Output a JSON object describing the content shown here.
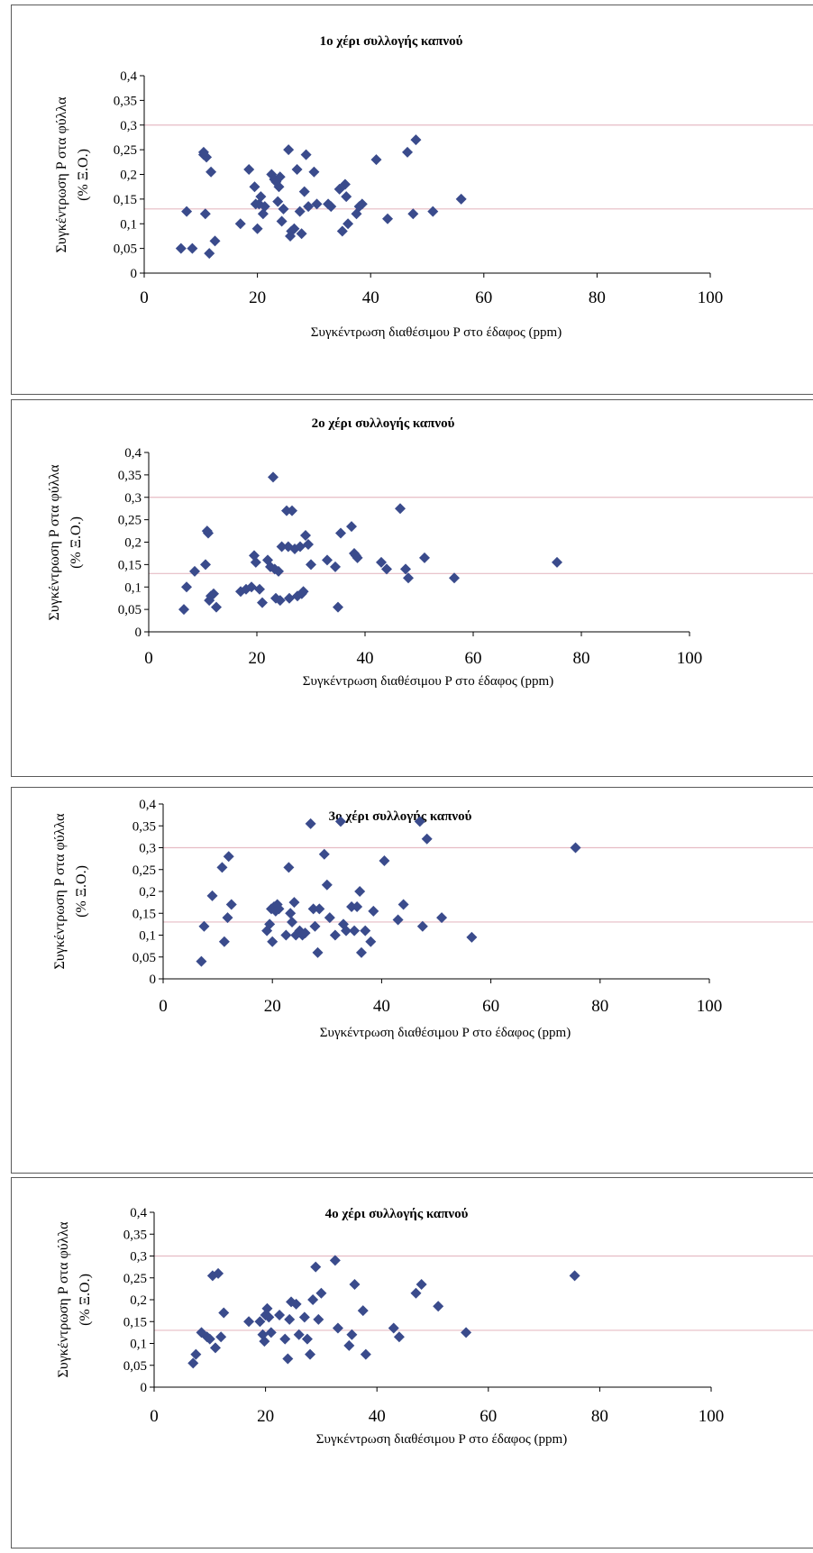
{
  "chart_data": [
    {
      "type": "scatter",
      "title": "1ο χέρι συλλογής καπνού",
      "xlabel": "Συγκέντρωση διαθέσιμου P στο έδαφος (ppm)",
      "ylabel": [
        "Συγκέντρωση P στα φύλλα",
        "(% Ξ.Ο.)"
      ],
      "xlim": [
        0,
        100
      ],
      "ylim": [
        0,
        0.4
      ],
      "xticks": [
        "0",
        "20",
        "40",
        "60",
        "80",
        "100"
      ],
      "yticks": [
        "0",
        "0,05",
        "0,1",
        "0,15",
        "0,2",
        "0,25",
        "0,3",
        "0,35",
        "0,4"
      ],
      "reference_lines": [
        0.3,
        0.13
      ],
      "marker_color": "#3a4b8c",
      "reference_line_color": "#e6bcc4",
      "points": [
        [
          6.5,
          0.05
        ],
        [
          7.5,
          0.125
        ],
        [
          8.5,
          0.05
        ],
        [
          10.5,
          0.24
        ],
        [
          10.5,
          0.245
        ],
        [
          10.8,
          0.12
        ],
        [
          11,
          0.235
        ],
        [
          11.5,
          0.04
        ],
        [
          11.8,
          0.205
        ],
        [
          12.5,
          0.065
        ],
        [
          17,
          0.1
        ],
        [
          18.5,
          0.21
        ],
        [
          19.5,
          0.175
        ],
        [
          19.7,
          0.14
        ],
        [
          20,
          0.09
        ],
        [
          20.3,
          0.14
        ],
        [
          20.6,
          0.155
        ],
        [
          21,
          0.12
        ],
        [
          21.3,
          0.135
        ],
        [
          22.5,
          0.2
        ],
        [
          23,
          0.19
        ],
        [
          23.3,
          0.185
        ],
        [
          23.6,
          0.145
        ],
        [
          23.8,
          0.175
        ],
        [
          24,
          0.195
        ],
        [
          24.3,
          0.105
        ],
        [
          24.6,
          0.13
        ],
        [
          25.5,
          0.25
        ],
        [
          25.8,
          0.075
        ],
        [
          26,
          0.085
        ],
        [
          26.5,
          0.09
        ],
        [
          27,
          0.21
        ],
        [
          27.5,
          0.125
        ],
        [
          27.8,
          0.08
        ],
        [
          28.3,
          0.165
        ],
        [
          28.6,
          0.24
        ],
        [
          29,
          0.135
        ],
        [
          30,
          0.205
        ],
        [
          30.5,
          0.14
        ],
        [
          32.5,
          0.14
        ],
        [
          33,
          0.135
        ],
        [
          34.5,
          0.17
        ],
        [
          35,
          0.085
        ],
        [
          35.5,
          0.18
        ],
        [
          35.7,
          0.155
        ],
        [
          36,
          0.1
        ],
        [
          37.5,
          0.12
        ],
        [
          38,
          0.135
        ],
        [
          38.5,
          0.14
        ],
        [
          41,
          0.23
        ],
        [
          43,
          0.11
        ],
        [
          46.5,
          0.245
        ],
        [
          47.5,
          0.12
        ],
        [
          48,
          0.27
        ],
        [
          51,
          0.125
        ],
        [
          56,
          0.15
        ]
      ]
    },
    {
      "type": "scatter",
      "title": "2ο χέρι συλλογής καπνού",
      "xlabel": "Συγκέντρωση διαθέσιμου P στο έδαφος (ppm)",
      "ylabel": [
        "Συγκέντρωση P στα φύλλα",
        "(% Ξ.Ο.)"
      ],
      "xlim": [
        0,
        100
      ],
      "ylim": [
        0,
        0.4
      ],
      "xticks": [
        "0",
        "20",
        "40",
        "60",
        "80",
        "100"
      ],
      "yticks": [
        "0",
        "0,05",
        "0,1",
        "0,15",
        "0,2",
        "0,25",
        "0,3",
        "0,35",
        "0,4"
      ],
      "reference_lines": [
        0.3,
        0.13
      ],
      "marker_color": "#3a4b8c",
      "reference_line_color": "#e6bcc4",
      "points": [
        [
          6.5,
          0.05
        ],
        [
          7,
          0.1
        ],
        [
          8.5,
          0.135
        ],
        [
          10.5,
          0.15
        ],
        [
          10.8,
          0.225
        ],
        [
          11,
          0.22
        ],
        [
          11.2,
          0.07
        ],
        [
          11.5,
          0.08
        ],
        [
          12,
          0.085
        ],
        [
          12.5,
          0.055
        ],
        [
          17,
          0.09
        ],
        [
          18,
          0.095
        ],
        [
          19,
          0.1
        ],
        [
          19.5,
          0.17
        ],
        [
          19.8,
          0.155
        ],
        [
          20.5,
          0.095
        ],
        [
          21,
          0.065
        ],
        [
          22,
          0.16
        ],
        [
          22.5,
          0.145
        ],
        [
          23,
          0.345
        ],
        [
          23.3,
          0.14
        ],
        [
          23.5,
          0.075
        ],
        [
          24,
          0.135
        ],
        [
          24.3,
          0.07
        ],
        [
          24.6,
          0.19
        ],
        [
          25.5,
          0.27
        ],
        [
          25.8,
          0.19
        ],
        [
          26,
          0.075
        ],
        [
          26.5,
          0.27
        ],
        [
          27,
          0.185
        ],
        [
          27.5,
          0.08
        ],
        [
          28,
          0.19
        ],
        [
          28.3,
          0.085
        ],
        [
          28.6,
          0.09
        ],
        [
          29,
          0.215
        ],
        [
          29.5,
          0.195
        ],
        [
          30,
          0.15
        ],
        [
          33,
          0.16
        ],
        [
          34.5,
          0.145
        ],
        [
          35,
          0.055
        ],
        [
          35.5,
          0.22
        ],
        [
          37.5,
          0.235
        ],
        [
          38,
          0.175
        ],
        [
          38.3,
          0.17
        ],
        [
          38.6,
          0.165
        ],
        [
          43,
          0.155
        ],
        [
          44,
          0.14
        ],
        [
          46.5,
          0.275
        ],
        [
          47.5,
          0.14
        ],
        [
          48,
          0.12
        ],
        [
          51,
          0.165
        ],
        [
          56.5,
          0.12
        ],
        [
          75.5,
          0.155
        ]
      ]
    },
    {
      "type": "scatter",
      "title": "3ο χέρι συλλογής καπνού",
      "xlabel": "Συγκέντρωση διαθέσιμου P στο έδαφος (ppm)",
      "ylabel": [
        "Συγκέντρωση P στα φύλλα",
        "(% Ξ.Ο.)"
      ],
      "xlim": [
        0,
        100
      ],
      "ylim": [
        0,
        0.4
      ],
      "xticks": [
        "0",
        "20",
        "40",
        "60",
        "80",
        "100"
      ],
      "yticks": [
        "0",
        "0,05",
        "0,1",
        "0,15",
        "0,2",
        "0,25",
        "0,3",
        "0,35",
        "0,4"
      ],
      "reference_lines": [
        0.3,
        0.13
      ],
      "marker_color": "#3a4b8c",
      "reference_line_color": "#e6bcc4",
      "points": [
        [
          7,
          0.04
        ],
        [
          7.5,
          0.12
        ],
        [
          9,
          0.19
        ],
        [
          10.8,
          0.255
        ],
        [
          11.2,
          0.085
        ],
        [
          11.8,
          0.14
        ],
        [
          12,
          0.28
        ],
        [
          12.5,
          0.17
        ],
        [
          19,
          0.11
        ],
        [
          19.5,
          0.125
        ],
        [
          19.8,
          0.16
        ],
        [
          20,
          0.085
        ],
        [
          20.3,
          0.165
        ],
        [
          20.6,
          0.155
        ],
        [
          20.9,
          0.17
        ],
        [
          21.2,
          0.16
        ],
        [
          22.5,
          0.1
        ],
        [
          23,
          0.255
        ],
        [
          23.3,
          0.15
        ],
        [
          23.6,
          0.13
        ],
        [
          24,
          0.175
        ],
        [
          24.3,
          0.1
        ],
        [
          25,
          0.11
        ],
        [
          25.5,
          0.1
        ],
        [
          26,
          0.105
        ],
        [
          27,
          0.355
        ],
        [
          27.5,
          0.16
        ],
        [
          27.8,
          0.12
        ],
        [
          28.3,
          0.06
        ],
        [
          28.6,
          0.16
        ],
        [
          29.5,
          0.285
        ],
        [
          30,
          0.215
        ],
        [
          30.5,
          0.14
        ],
        [
          31.5,
          0.1
        ],
        [
          32.5,
          0.36
        ],
        [
          33,
          0.125
        ],
        [
          33.5,
          0.11
        ],
        [
          34.5,
          0.165
        ],
        [
          35,
          0.11
        ],
        [
          35.5,
          0.165
        ],
        [
          36,
          0.2
        ],
        [
          36.3,
          0.06
        ],
        [
          37,
          0.11
        ],
        [
          38,
          0.085
        ],
        [
          38.5,
          0.155
        ],
        [
          40.5,
          0.27
        ],
        [
          43,
          0.135
        ],
        [
          44,
          0.17
        ],
        [
          47,
          0.36
        ],
        [
          47.5,
          0.12
        ],
        [
          48.3,
          0.32
        ],
        [
          51,
          0.14
        ],
        [
          56.5,
          0.095
        ],
        [
          75.5,
          0.3
        ]
      ]
    },
    {
      "type": "scatter",
      "title": "4ο χέρι συλλογής καπνού",
      "xlabel": "Συγκέντρωση διαθέσιμου P στο έδαφος (ppm)",
      "ylabel": [
        "Συγκέντρωση P στα φύλλα",
        "(% Ξ.Ο.)"
      ],
      "xlim": [
        0,
        100
      ],
      "ylim": [
        0,
        0.4
      ],
      "xticks": [
        "0",
        "20",
        "40",
        "60",
        "80",
        "100"
      ],
      "yticks": [
        "0",
        "0,05",
        "0,1",
        "0,15",
        "0,2",
        "0,25",
        "0,3",
        "0,35",
        "0,4"
      ],
      "reference_lines": [
        0.3,
        0.13
      ],
      "marker_color": "#3a4b8c",
      "reference_line_color": "#e6bcc4",
      "points": [
        [
          7,
          0.055
        ],
        [
          7.5,
          0.075
        ],
        [
          8.5,
          0.125
        ],
        [
          9.5,
          0.115
        ],
        [
          10,
          0.11
        ],
        [
          10.5,
          0.255
        ],
        [
          11,
          0.09
        ],
        [
          11.5,
          0.26
        ],
        [
          12,
          0.115
        ],
        [
          12.5,
          0.17
        ],
        [
          17,
          0.15
        ],
        [
          19,
          0.15
        ],
        [
          19.5,
          0.12
        ],
        [
          19.8,
          0.105
        ],
        [
          20,
          0.165
        ],
        [
          20.3,
          0.18
        ],
        [
          20.6,
          0.16
        ],
        [
          21,
          0.125
        ],
        [
          22.5,
          0.165
        ],
        [
          23.5,
          0.11
        ],
        [
          24,
          0.065
        ],
        [
          24.3,
          0.155
        ],
        [
          24.6,
          0.195
        ],
        [
          25.5,
          0.19
        ],
        [
          26,
          0.12
        ],
        [
          27,
          0.16
        ],
        [
          27.5,
          0.11
        ],
        [
          28,
          0.075
        ],
        [
          28.5,
          0.2
        ],
        [
          29,
          0.275
        ],
        [
          29.5,
          0.155
        ],
        [
          30,
          0.215
        ],
        [
          32.5,
          0.29
        ],
        [
          33,
          0.135
        ],
        [
          35,
          0.095
        ],
        [
          35.5,
          0.12
        ],
        [
          36,
          0.235
        ],
        [
          37.5,
          0.175
        ],
        [
          38,
          0.075
        ],
        [
          43,
          0.135
        ],
        [
          44,
          0.115
        ],
        [
          47,
          0.215
        ],
        [
          48,
          0.235
        ],
        [
          51,
          0.185
        ],
        [
          56,
          0.125
        ],
        [
          75.5,
          0.255
        ]
      ]
    }
  ]
}
